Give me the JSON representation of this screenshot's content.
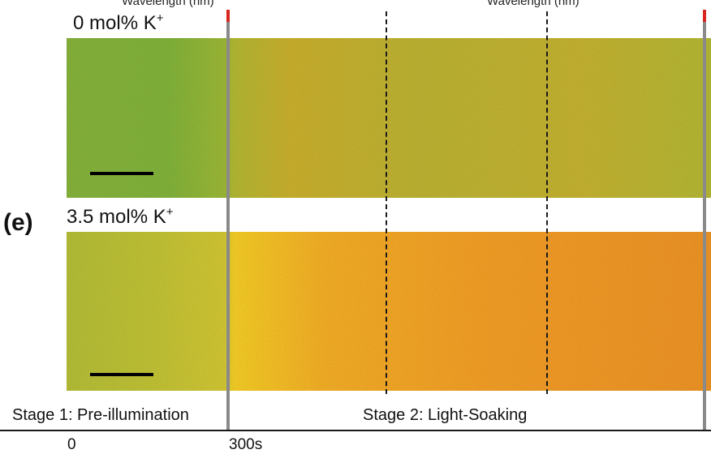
{
  "header": {
    "axis_label_left": "Wavelength (nm)",
    "axis_label_right": "Wavelength (nm)"
  },
  "figure": {
    "panel_letter": "(e)",
    "rows": [
      {
        "label_prefix": "0 mol% K",
        "label_sup": "+"
      },
      {
        "label_prefix": "3.5 mol% K",
        "label_sup": "+"
      }
    ],
    "stages": [
      {
        "label": "Stage 1: Pre-illumination"
      },
      {
        "label": "Stage 2: Light-Soaking"
      }
    ],
    "time_ticks": [
      "0",
      "300s"
    ]
  },
  "colors": {
    "row1_preillumination": "#79c247",
    "row1_soaking": "#b6c03a",
    "row2_preillumination": "#a3c93c",
    "row2_soaking": "#eba428",
    "marker_line": "#8a8a8a",
    "marker_cap": "#d8261f",
    "dash": "#1a1a1a"
  }
}
